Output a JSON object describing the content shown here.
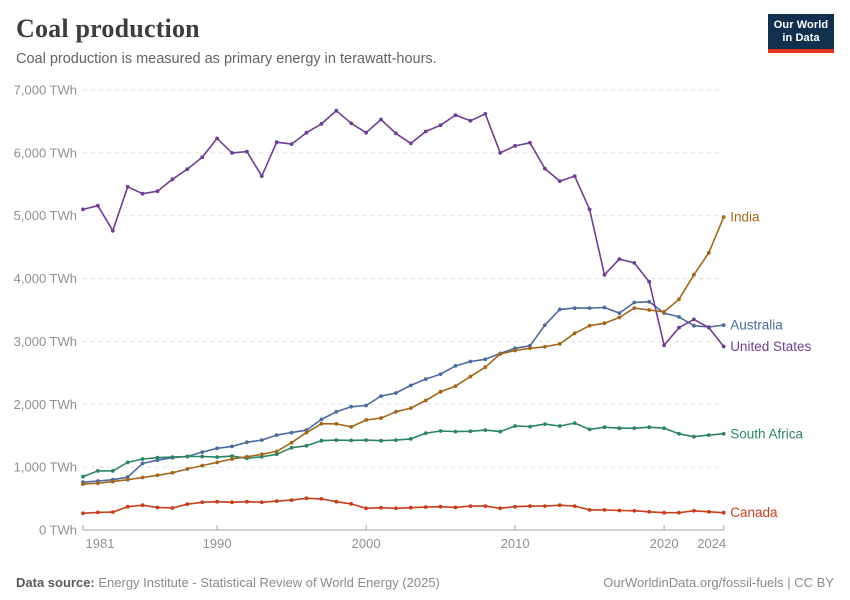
{
  "header": {
    "title": "Coal production",
    "subtitle": "Coal production is measured as primary energy in terawatt-hours."
  },
  "logo": {
    "line1": "Our World",
    "line2": "in Data",
    "bg_color": "#11304d",
    "accent_color": "#e0321f"
  },
  "footer": {
    "datasource_label": "Data source:",
    "datasource_text": " Energy Institute - Statistical Review of World Energy (2025)",
    "credit": "OurWorldinData.org/fossil-fuels | CC BY"
  },
  "chart_data": {
    "type": "line",
    "title": "Coal production",
    "subtitle": "Coal production is measured as primary energy in terawatt-hours.",
    "unit": "TWh",
    "xlabel": "",
    "ylabel": "TWh",
    "ylim": [
      0,
      7000
    ],
    "y_ticks": [
      0,
      1000,
      2000,
      3000,
      4000,
      5000,
      6000,
      7000
    ],
    "x_ticks": [
      1981,
      1990,
      2000,
      2010,
      2020,
      2024
    ],
    "grid": "dashed-horizontal",
    "legend_position": "right-edge-labels",
    "marker": "point",
    "x": [
      1981,
      1982,
      1983,
      1984,
      1985,
      1986,
      1987,
      1988,
      1989,
      1990,
      1991,
      1992,
      1993,
      1994,
      1995,
      1996,
      1997,
      1998,
      1999,
      2000,
      2001,
      2002,
      2003,
      2004,
      2005,
      2006,
      2007,
      2008,
      2009,
      2010,
      2011,
      2012,
      2013,
      2014,
      2015,
      2016,
      2017,
      2018,
      2019,
      2020,
      2021,
      2022,
      2023,
      2024
    ],
    "series": [
      {
        "name": "Australia",
        "color": "#4c6a9c",
        "values": [
          760,
          780,
          800,
          840,
          1060,
          1110,
          1150,
          1170,
          1240,
          1300,
          1330,
          1395,
          1430,
          1510,
          1550,
          1590,
          1760,
          1880,
          1960,
          1980,
          2130,
          2180,
          2300,
          2400,
          2480,
          2610,
          2680,
          2715,
          2810,
          2890,
          2930,
          3260,
          3510,
          3530,
          3530,
          3540,
          3450,
          3620,
          3630,
          3450,
          3390,
          3250,
          3230,
          3260
        ]
      },
      {
        "name": "South Africa",
        "color": "#2c8465",
        "values": [
          850,
          940,
          940,
          1075,
          1130,
          1150,
          1160,
          1170,
          1170,
          1160,
          1175,
          1140,
          1165,
          1205,
          1310,
          1340,
          1420,
          1430,
          1425,
          1430,
          1420,
          1430,
          1450,
          1540,
          1575,
          1565,
          1570,
          1590,
          1565,
          1655,
          1645,
          1685,
          1655,
          1700,
          1600,
          1635,
          1620,
          1620,
          1635,
          1620,
          1530,
          1485,
          1510,
          1530
        ]
      },
      {
        "name": "Canada",
        "color": "#c73e1d",
        "values": [
          265,
          280,
          285,
          370,
          395,
          360,
          350,
          410,
          440,
          450,
          440,
          450,
          440,
          460,
          475,
          505,
          495,
          450,
          415,
          345,
          355,
          345,
          355,
          365,
          370,
          360,
          380,
          380,
          345,
          370,
          380,
          380,
          395,
          380,
          320,
          320,
          310,
          305,
          290,
          275,
          275,
          305,
          290,
          275
        ]
      },
      {
        "name": "United States",
        "color": "#6d3e91",
        "values": [
          5100,
          5160,
          4760,
          5460,
          5350,
          5390,
          5580,
          5740,
          5930,
          6230,
          6000,
          6020,
          5630,
          6170,
          6140,
          6320,
          6460,
          6670,
          6470,
          6320,
          6530,
          6310,
          6150,
          6340,
          6440,
          6600,
          6510,
          6620,
          6000,
          6110,
          6160,
          5750,
          5550,
          5630,
          5100,
          4060,
          4310,
          4250,
          3950,
          2940,
          3220,
          3350,
          3220,
          2920
        ]
      },
      {
        "name": "India",
        "color": "#a2661d",
        "values": [
          730,
          745,
          770,
          800,
          835,
          870,
          910,
          970,
          1025,
          1075,
          1130,
          1165,
          1205,
          1250,
          1390,
          1550,
          1690,
          1690,
          1640,
          1750,
          1780,
          1880,
          1940,
          2060,
          2200,
          2290,
          2440,
          2590,
          2800,
          2855,
          2890,
          2915,
          2960,
          3130,
          3250,
          3290,
          3380,
          3530,
          3500,
          3470,
          3670,
          4060,
          4410,
          4980
        ]
      }
    ]
  }
}
